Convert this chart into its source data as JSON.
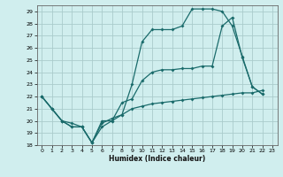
{
  "xlabel": "Humidex (Indice chaleur)",
  "bg_color": "#d0eeee",
  "grid_color": "#aacccc",
  "line_color": "#1a6b6b",
  "xlim": [
    -0.5,
    23.5
  ],
  "ylim": [
    18,
    29.5
  ],
  "xticks": [
    0,
    1,
    2,
    3,
    4,
    5,
    6,
    7,
    8,
    9,
    10,
    11,
    12,
    13,
    14,
    15,
    16,
    17,
    18,
    19,
    20,
    21,
    22,
    23
  ],
  "yticks": [
    18,
    19,
    20,
    21,
    22,
    23,
    24,
    25,
    26,
    27,
    28,
    29
  ],
  "s1_x": [
    0,
    1,
    2,
    3,
    4,
    5,
    6,
    7,
    8,
    9,
    10,
    11,
    12,
    13,
    14,
    15,
    16,
    17,
    18,
    19,
    20,
    21,
    22
  ],
  "s1_y": [
    22,
    21,
    20,
    19.5,
    19.5,
    18.2,
    20,
    20,
    20.5,
    23,
    26.5,
    27.5,
    27.5,
    27.5,
    27.8,
    29.2,
    29.2,
    29.2,
    29.0,
    27.8,
    25.3,
    22.8,
    22.2
  ],
  "s2_x": [
    0,
    1,
    2,
    3,
    4,
    5,
    6,
    7,
    8,
    9,
    10,
    11,
    12,
    13,
    14,
    15,
    16,
    17,
    18,
    19,
    20,
    21,
    22
  ],
  "s2_y": [
    22,
    21,
    20,
    19.5,
    19.5,
    18.2,
    19.5,
    20.0,
    21.5,
    21.8,
    23.3,
    24.0,
    24.2,
    24.2,
    24.3,
    24.3,
    24.5,
    24.5,
    27.8,
    28.5,
    25.2,
    22.8,
    22.2
  ],
  "s3_x": [
    0,
    1,
    2,
    3,
    4,
    5,
    6,
    7,
    8,
    9,
    10,
    11,
    12,
    13,
    14,
    15,
    16,
    17,
    18,
    19,
    20,
    21,
    22
  ],
  "s3_y": [
    22,
    21,
    20,
    19.8,
    19.5,
    18.2,
    19.8,
    20.2,
    20.5,
    21.0,
    21.2,
    21.4,
    21.5,
    21.6,
    21.7,
    21.8,
    21.9,
    22.0,
    22.1,
    22.2,
    22.3,
    22.3,
    22.5
  ]
}
